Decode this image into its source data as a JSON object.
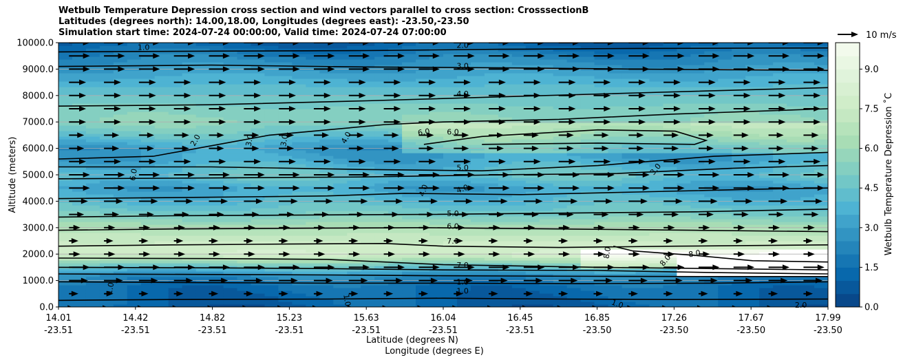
{
  "chart_data": {
    "type": "contour",
    "title_lines": [
      "Wetbulb Temperature Depression cross section and wind vectors parallel to cross section: CrosssectionB",
      "Latitudes (degrees north): 14.00,18.00, Longitudes (degrees east): -23.50,-23.50",
      "Simulation start time: 2024-07-24 00:00:00, Valid time: 2024-07-24 07:00:00"
    ],
    "ylabel": "Altitude (meters)",
    "xlabel_lines": [
      "Latitude (degrees N)",
      "Longitude (degrees E)"
    ],
    "ylim": [
      0,
      10000
    ],
    "xlim": [
      14.01,
      17.99
    ],
    "y_ticks": [
      "0.0",
      "1000.0",
      "2000.0",
      "3000.0",
      "4000.0",
      "5000.0",
      "6000.0",
      "7000.0",
      "8000.0",
      "9000.0",
      "10000.0"
    ],
    "x_ticks": [
      {
        "lat": "14.01",
        "lon": "-23.51"
      },
      {
        "lat": "14.42",
        "lon": "-23.51"
      },
      {
        "lat": "14.82",
        "lon": "-23.51"
      },
      {
        "lat": "15.23",
        "lon": "-23.51"
      },
      {
        "lat": "15.63",
        "lon": "-23.51"
      },
      {
        "lat": "16.04",
        "lon": "-23.51"
      },
      {
        "lat": "16.45",
        "lon": "-23.51"
      },
      {
        "lat": "16.85",
        "lon": "-23.50"
      },
      {
        "lat": "17.26",
        "lon": "-23.50"
      },
      {
        "lat": "17.67",
        "lon": "-23.50"
      },
      {
        "lat": "17.99",
        "lon": "-23.50"
      }
    ],
    "colorbar": {
      "label": "Wetbulb Temperature Depression ˚C",
      "range": [
        0,
        10
      ],
      "ticks": [
        "0.0",
        "1.5",
        "3.0",
        "4.5",
        "6.0",
        "7.5",
        "9.0"
      ],
      "levels": 20,
      "colormap": "GnBu_r"
    },
    "wind_key": {
      "label": "10 m/s",
      "speed": 10
    },
    "grid": "horizontal",
    "field_profile": [
      {
        "alt": 0,
        "value": 1.0
      },
      {
        "alt": 300,
        "value": 1.2
      },
      {
        "alt": 800,
        "value": 1.5
      },
      {
        "alt": 1200,
        "value": 2.5
      },
      {
        "alt": 1600,
        "value": 5.0
      },
      {
        "alt": 2000,
        "value": 8.0
      },
      {
        "alt": 2500,
        "value": 7.5
      },
      {
        "alt": 3000,
        "value": 6.5
      },
      {
        "alt": 3500,
        "value": 5.0
      },
      {
        "alt": 4000,
        "value": 4.0
      },
      {
        "alt": 4500,
        "value": 3.3
      },
      {
        "alt": 5000,
        "value": 4.5
      },
      {
        "alt": 5600,
        "value": 3.3
      },
      {
        "alt": 6000,
        "value": 3.0
      },
      {
        "alt": 6500,
        "value": 4.5
      },
      {
        "alt": 7000,
        "value": 5.5
      },
      {
        "alt": 7500,
        "value": 5.2
      },
      {
        "alt": 8000,
        "value": 4.5
      },
      {
        "alt": 8500,
        "value": 3.8
      },
      {
        "alt": 9000,
        "value": 3.0
      },
      {
        "alt": 9500,
        "value": 2.2
      },
      {
        "alt": 10000,
        "value": 1.0
      }
    ],
    "contour_lines": [
      {
        "level": 1.0,
        "points": [
          [
            14.01,
            250
          ],
          [
            14.6,
            280
          ],
          [
            15.4,
            300
          ],
          [
            16.0,
            330
          ],
          [
            16.6,
            300
          ],
          [
            17.2,
            280
          ],
          [
            17.99,
            300
          ]
        ]
      },
      {
        "level": 1.0,
        "points": [
          [
            14.01,
            950
          ],
          [
            14.8,
            920
          ],
          [
            15.4,
            900
          ],
          [
            16.0,
            900
          ],
          [
            16.7,
            880
          ],
          [
            17.4,
            900
          ],
          [
            17.99,
            950
          ]
        ]
      },
      {
        "level": 3.0,
        "points": [
          [
            14.01,
            1250
          ],
          [
            14.8,
            1230
          ],
          [
            15.4,
            1210
          ],
          [
            16.0,
            1180
          ],
          [
            16.8,
            1160
          ],
          [
            17.4,
            1150
          ],
          [
            17.99,
            1150
          ]
        ]
      },
      {
        "level": 5.0,
        "points": [
          [
            14.01,
            1500
          ],
          [
            14.8,
            1480
          ],
          [
            15.4,
            1450
          ],
          [
            16.0,
            1400
          ],
          [
            16.8,
            1380
          ],
          [
            17.4,
            1300
          ],
          [
            17.99,
            1250
          ]
        ]
      },
      {
        "level": 7.0,
        "points": [
          [
            14.01,
            1850
          ],
          [
            14.8,
            1830
          ],
          [
            15.4,
            1800
          ],
          [
            16.0,
            1600
          ],
          [
            16.8,
            1500
          ],
          [
            17.4,
            1450
          ],
          [
            17.99,
            1400
          ]
        ]
      },
      {
        "level": 7.0,
        "points": [
          [
            14.01,
            2300
          ],
          [
            14.6,
            2350
          ],
          [
            15.2,
            2380
          ],
          [
            15.7,
            2400
          ],
          [
            16.0,
            2300
          ],
          [
            16.6,
            2250
          ],
          [
            17.2,
            2300
          ],
          [
            17.99,
            2350
          ]
        ]
      },
      {
        "level": 8.0,
        "points": [
          [
            16.88,
            2300
          ],
          [
            16.98,
            2120
          ],
          [
            17.3,
            1950
          ],
          [
            17.6,
            1750
          ],
          [
            17.99,
            1700
          ]
        ]
      },
      {
        "level": 6.0,
        "points": [
          [
            14.01,
            2900
          ],
          [
            14.6,
            2950
          ],
          [
            15.3,
            2980
          ],
          [
            15.9,
            3000
          ],
          [
            16.6,
            2950
          ],
          [
            17.3,
            2900
          ],
          [
            17.99,
            2850
          ]
        ]
      },
      {
        "level": 5.0,
        "points": [
          [
            14.01,
            3400
          ],
          [
            14.6,
            3450
          ],
          [
            15.3,
            3480
          ],
          [
            15.9,
            3500
          ],
          [
            16.6,
            3550
          ],
          [
            17.3,
            3600
          ],
          [
            17.99,
            3700
          ]
        ]
      },
      {
        "level": 4.0,
        "points": [
          [
            14.01,
            4100
          ],
          [
            14.8,
            4150
          ],
          [
            15.4,
            4200
          ],
          [
            15.8,
            4300
          ],
          [
            16.4,
            4250
          ],
          [
            17.0,
            4350
          ],
          [
            17.6,
            4450
          ],
          [
            17.99,
            4500
          ]
        ]
      },
      {
        "level": 3.0,
        "points": [
          [
            14.01,
            4850
          ],
          [
            14.8,
            4880
          ],
          [
            15.6,
            4920
          ],
          [
            16.3,
            5000
          ],
          [
            16.9,
            5050
          ],
          [
            17.5,
            5250
          ],
          [
            17.99,
            5350
          ]
        ]
      },
      {
        "level": 5.0,
        "points": [
          [
            14.01,
            5300
          ],
          [
            14.8,
            5300
          ],
          [
            15.6,
            5200
          ],
          [
            16.2,
            5150
          ],
          [
            16.8,
            5350
          ],
          [
            17.4,
            5700
          ],
          [
            17.99,
            5850
          ]
        ]
      },
      {
        "level": 2.0,
        "points": [
          [
            14.01,
            5600
          ],
          [
            14.5,
            5700
          ],
          [
            14.8,
            6100
          ],
          [
            15.1,
            6500
          ],
          [
            15.4,
            6700
          ],
          [
            15.7,
            6900
          ],
          [
            16.0,
            7000
          ],
          [
            16.6,
            7100
          ],
          [
            17.2,
            7300
          ],
          [
            17.99,
            7500
          ]
        ]
      },
      {
        "level": 6.0,
        "points": [
          [
            15.9,
            6150
          ],
          [
            16.2,
            6450
          ],
          [
            16.8,
            6700
          ],
          [
            17.2,
            6650
          ],
          [
            17.36,
            6300
          ],
          [
            17.3,
            6150
          ],
          [
            16.8,
            6200
          ],
          [
            16.2,
            6150
          ]
        ]
      },
      {
        "level": 4.0,
        "points": [
          [
            14.01,
            7600
          ],
          [
            14.8,
            7650
          ],
          [
            15.6,
            7800
          ],
          [
            16.3,
            7950
          ],
          [
            17.0,
            8100
          ],
          [
            17.99,
            8300
          ]
        ]
      },
      {
        "level": 3.0,
        "points": [
          [
            14.01,
            9100
          ],
          [
            14.8,
            9150
          ],
          [
            15.6,
            9080
          ],
          [
            16.3,
            9050
          ],
          [
            17.0,
            9000
          ],
          [
            17.99,
            8950
          ]
        ]
      },
      {
        "level": 2.0,
        "points": [
          [
            14.01,
            9650
          ],
          [
            14.8,
            9680
          ],
          [
            15.6,
            9700
          ],
          [
            16.3,
            9750
          ],
          [
            17.0,
            9780
          ],
          [
            17.99,
            9800
          ]
        ]
      }
    ],
    "contour_label_marks": [
      {
        "text": "1.0",
        "lat": 14.28,
        "alt": 700,
        "angle": -80
      },
      {
        "text": "1.0",
        "lat": 15.5,
        "alt": 250,
        "angle": 80
      },
      {
        "text": "1.0",
        "lat": 16.1,
        "alt": 580,
        "angle": 0
      },
      {
        "text": "1.0",
        "lat": 16.1,
        "alt": 920,
        "angle": 0
      },
      {
        "text": "7.0",
        "lat": 16.1,
        "alt": 1560,
        "angle": 0
      },
      {
        "text": "7.0",
        "lat": 16.05,
        "alt": 2480,
        "angle": 0
      },
      {
        "text": "6.0",
        "lat": 16.05,
        "alt": 3030,
        "angle": 0
      },
      {
        "text": "5.0",
        "lat": 16.05,
        "alt": 3520,
        "angle": 0
      },
      {
        "text": "4.0",
        "lat": 16.1,
        "alt": 4450,
        "angle": -20
      },
      {
        "text": "4.0",
        "lat": 15.9,
        "alt": 4400,
        "angle": -70
      },
      {
        "text": "5.0",
        "lat": 16.1,
        "alt": 5250,
        "angle": 0
      },
      {
        "text": "6.0",
        "lat": 15.9,
        "alt": 6600,
        "angle": -10
      },
      {
        "text": "6.0",
        "lat": 16.05,
        "alt": 6600,
        "angle": 0
      },
      {
        "text": "4.0",
        "lat": 16.1,
        "alt": 8050,
        "angle": 0
      },
      {
        "text": "3.0",
        "lat": 16.1,
        "alt": 9100,
        "angle": 0
      },
      {
        "text": "2.0",
        "lat": 16.1,
        "alt": 9880,
        "angle": 0
      },
      {
        "text": "2.0",
        "lat": 14.72,
        "alt": 6300,
        "angle": -60
      },
      {
        "text": "3.0",
        "lat": 15.0,
        "alt": 6300,
        "angle": -80
      },
      {
        "text": "3.0",
        "lat": 15.18,
        "alt": 6300,
        "angle": -80
      },
      {
        "text": "4.0",
        "lat": 15.5,
        "alt": 6400,
        "angle": -60
      },
      {
        "text": "6.0",
        "lat": 14.4,
        "alt": 5000,
        "angle": -80
      },
      {
        "text": "3.0",
        "lat": 17.1,
        "alt": 5200,
        "angle": -50
      },
      {
        "text": "8.0",
        "lat": 16.85,
        "alt": 2050,
        "angle": -80
      },
      {
        "text": "8.0",
        "lat": 17.15,
        "alt": 1750,
        "angle": -50
      },
      {
        "text": "8.0",
        "lat": 17.3,
        "alt": 2000,
        "angle": -10
      },
      {
        "text": "1.0",
        "lat": 16.9,
        "alt": 100,
        "angle": 20
      },
      {
        "text": "2.0",
        "lat": 17.85,
        "alt": 50,
        "angle": 0
      },
      {
        "text": "1.0",
        "lat": 14.45,
        "alt": 9800,
        "angle": 0
      }
    ],
    "wind_rows": [
      {
        "alt": 0,
        "speed": 1
      },
      {
        "alt": 500,
        "speed": 2
      },
      {
        "alt": 1000,
        "speed": 7
      },
      {
        "alt": 1500,
        "speed": 8
      },
      {
        "alt": 2000,
        "speed": 3
      },
      {
        "alt": 2500,
        "speed": 2
      },
      {
        "alt": 3000,
        "speed": 3
      },
      {
        "alt": 3500,
        "speed": 5
      },
      {
        "alt": 4000,
        "speed": 7
      },
      {
        "alt": 4500,
        "speed": 8
      },
      {
        "alt": 5000,
        "speed": 8
      },
      {
        "alt": 5500,
        "speed": 6
      },
      {
        "alt": 6000,
        "speed": 5
      },
      {
        "alt": 6500,
        "speed": 5
      },
      {
        "alt": 7000,
        "speed": 6
      },
      {
        "alt": 7500,
        "speed": 6
      },
      {
        "alt": 8000,
        "speed": 6
      },
      {
        "alt": 8500,
        "speed": 6
      },
      {
        "alt": 9000,
        "speed": 8
      },
      {
        "alt": 9500,
        "speed": 8
      },
      {
        "alt": 10000,
        "speed": 8
      }
    ],
    "wind_columns": 22
  }
}
